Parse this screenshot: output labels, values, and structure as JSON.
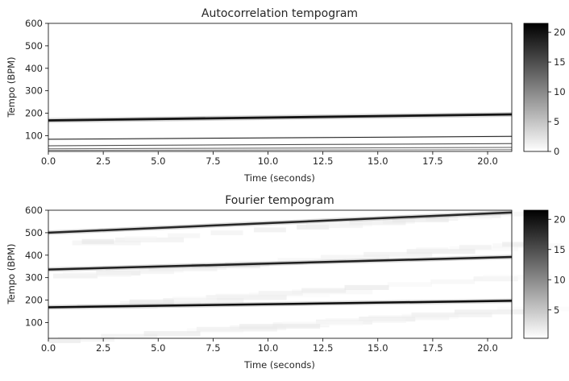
{
  "chart_data": [
    {
      "type": "heatmap",
      "title": "Autocorrelation tempogram",
      "xlabel": "Time (seconds)",
      "ylabel": "Tempo (BPM)",
      "xlim": [
        0,
        21.1
      ],
      "ylim": [
        30,
        600
      ],
      "x_ticks": [
        "0.0",
        "2.5",
        "5.0",
        "7.5",
        "10.0",
        "12.5",
        "15.0",
        "17.5",
        "20.0"
      ],
      "y_ticks": [
        "100",
        "200",
        "300",
        "400",
        "500",
        "600"
      ],
      "colorbar": {
        "range": [
          0,
          21.5
        ],
        "ticks": [
          "0",
          "5",
          "10",
          "15",
          "20"
        ],
        "colormap": "gray_r"
      },
      "ridges": [
        {
          "tempo_start": 168,
          "tempo_end": 195,
          "width_bpm": 10,
          "intensity": 0.92
        },
        {
          "tempo_start": 84,
          "tempo_end": 97,
          "width_bpm": 3,
          "intensity": 0.85
        },
        {
          "tempo_start": 55,
          "tempo_end": 65,
          "width_bpm": 2.5,
          "intensity": 0.7
        },
        {
          "tempo_start": 42,
          "tempo_end": 48,
          "width_bpm": 2,
          "intensity": 0.6
        },
        {
          "tempo_start": 35,
          "tempo_end": 38,
          "width_bpm": 2,
          "intensity": 0.5
        }
      ]
    },
    {
      "type": "heatmap",
      "title": "Fourier tempogram",
      "xlabel": "Time (seconds)",
      "ylabel": "Tempo (BPM)",
      "xlim": [
        0,
        21.1
      ],
      "ylim": [
        30,
        600
      ],
      "x_ticks": [
        "0.0",
        "2.5",
        "5.0",
        "7.5",
        "10.0",
        "12.5",
        "15.0",
        "17.5",
        "20.0"
      ],
      "y_ticks": [
        "100",
        "200",
        "300",
        "400",
        "500",
        "600"
      ],
      "colorbar": {
        "range": [
          0.3,
          21.5
        ],
        "ticks": [
          "5",
          "10",
          "15",
          "20"
        ],
        "colormap": "gray_r"
      },
      "ridges": [
        {
          "tempo_start": 168,
          "tempo_end": 197,
          "width_bpm": 9,
          "intensity": 0.95
        },
        {
          "tempo_start": 336,
          "tempo_end": 392,
          "width_bpm": 9,
          "intensity": 0.88
        },
        {
          "tempo_start": 500,
          "tempo_end": 590,
          "width_bpm": 9,
          "intensity": 0.85
        }
      ]
    }
  ]
}
